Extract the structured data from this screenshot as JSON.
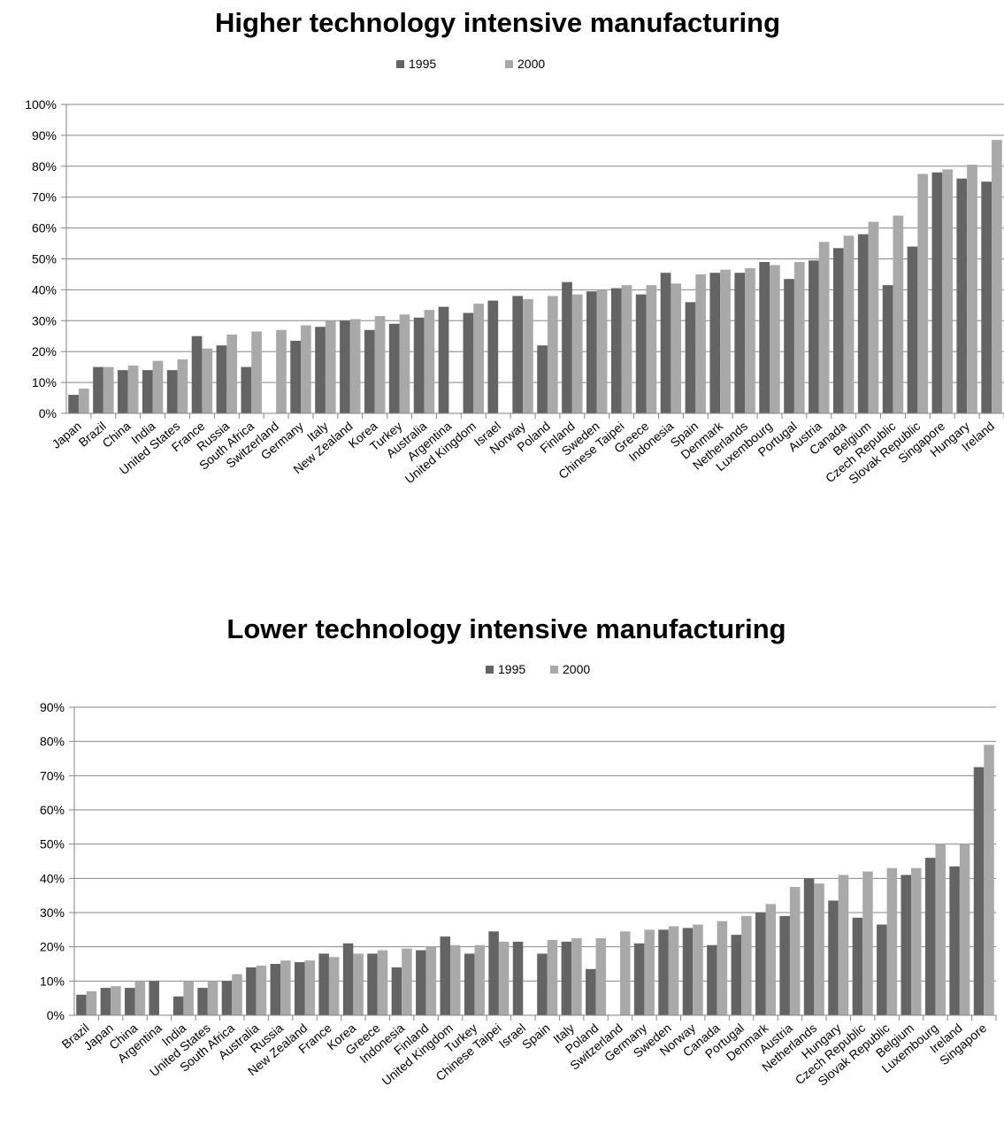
{
  "colors": {
    "series_1995": "#646464",
    "series_2000": "#a9a9a9",
    "grid": "#868686",
    "axis": "#868686"
  },
  "chart_data": [
    {
      "type": "bar",
      "title": "Higher technology intensive manufacturing",
      "legend": "top-center",
      "grid": true,
      "ylim": [
        0,
        100
      ],
      "yticks": [
        "0%",
        "10%",
        "20%",
        "30%",
        "40%",
        "50%",
        "60%",
        "70%",
        "80%",
        "90%",
        "100%"
      ],
      "categories": [
        "Japan",
        "Brazil",
        "China",
        "India",
        "United States",
        "France",
        "Russia",
        "South Africa",
        "Switzerland",
        "Germany",
        "Italy",
        "New Zealand",
        "Korea",
        "Turkey",
        "Australia",
        "Argentina",
        "United Kingdom",
        "Israel",
        "Norway",
        "Poland",
        "Finland",
        "Sweden",
        "Chinese Taipei",
        "Greece",
        "Indonesia",
        "Spain",
        "Denmark",
        "Netherlands",
        "Luxembourg",
        "Portugal",
        "Austria",
        "Canada",
        "Belgium",
        "Czech Republic",
        "Slovak Republic",
        "Singapore",
        "Hungary",
        "Ireland"
      ],
      "series": [
        {
          "name": "1995",
          "values": [
            6,
            15,
            14,
            14,
            14,
            25,
            22,
            15,
            null,
            23.5,
            28,
            30,
            27,
            29,
            31,
            34.5,
            32.5,
            36.5,
            38,
            22,
            42.5,
            39.5,
            40.5,
            38.5,
            45.5,
            36,
            45.5,
            45.5,
            49,
            43.5,
            49.5,
            53.5,
            58,
            41.5,
            54,
            78,
            76,
            75
          ]
        },
        {
          "name": "2000",
          "values": [
            8,
            15,
            15.5,
            17,
            17.5,
            21,
            25.5,
            26.5,
            27,
            28.5,
            30,
            30.5,
            31.5,
            32,
            33.5,
            null,
            35.5,
            null,
            37,
            38,
            38.5,
            40,
            41.5,
            41.5,
            42,
            45,
            46.5,
            47,
            48,
            49,
            55.5,
            57.5,
            62,
            64,
            77.5,
            79,
            80.5,
            88.5
          ]
        }
      ]
    },
    {
      "type": "bar",
      "title": "Lower technology intensive manufacturing",
      "legend": "top-center",
      "grid": true,
      "ylim": [
        0,
        90
      ],
      "yticks": [
        "0%",
        "10%",
        "20%",
        "30%",
        "40%",
        "50%",
        "60%",
        "70%",
        "80%",
        "90%"
      ],
      "categories": [
        "Brazil",
        "Japan",
        "China",
        "Argentina",
        "India",
        "United States",
        "South Africa",
        "Australia",
        "Russia",
        "New Zealand",
        "France",
        "Korea",
        "Greece",
        "Indonesia",
        "Finland",
        "United Kingdom",
        "Turkey",
        "Chinese Taipei",
        "Israel",
        "Spain",
        "Italy",
        "Poland",
        "Switzerland",
        "Germany",
        "Sweden",
        "Norway",
        "Canada",
        "Portugal",
        "Denmark",
        "Austria",
        "Netherlands",
        "Hungary",
        "Czech Republic",
        "Slovak Republic",
        "Belgium",
        "Luxembourg",
        "Ireland",
        "Singapore"
      ],
      "series": [
        {
          "name": "1995",
          "values": [
            6,
            8,
            8,
            10,
            5.5,
            8,
            10,
            14,
            15,
            15.5,
            18,
            21,
            18,
            14,
            19,
            23,
            18,
            24.5,
            21.5,
            18,
            21.5,
            13.5,
            null,
            21,
            25,
            25.5,
            20.5,
            23.5,
            30,
            29,
            40,
            33.5,
            28.5,
            26.5,
            41,
            46,
            43.5,
            72.5
          ]
        },
        {
          "name": "2000",
          "values": [
            7,
            8.5,
            10,
            null,
            10,
            10,
            12,
            14.5,
            16,
            16,
            17,
            18,
            19,
            19.5,
            20,
            20.5,
            20.5,
            21.5,
            null,
            22,
            22.5,
            22.5,
            24.5,
            25,
            26,
            26.5,
            27.5,
            29,
            32.5,
            37.5,
            38.5,
            41,
            42,
            43,
            43,
            50,
            50,
            79
          ]
        }
      ]
    }
  ]
}
